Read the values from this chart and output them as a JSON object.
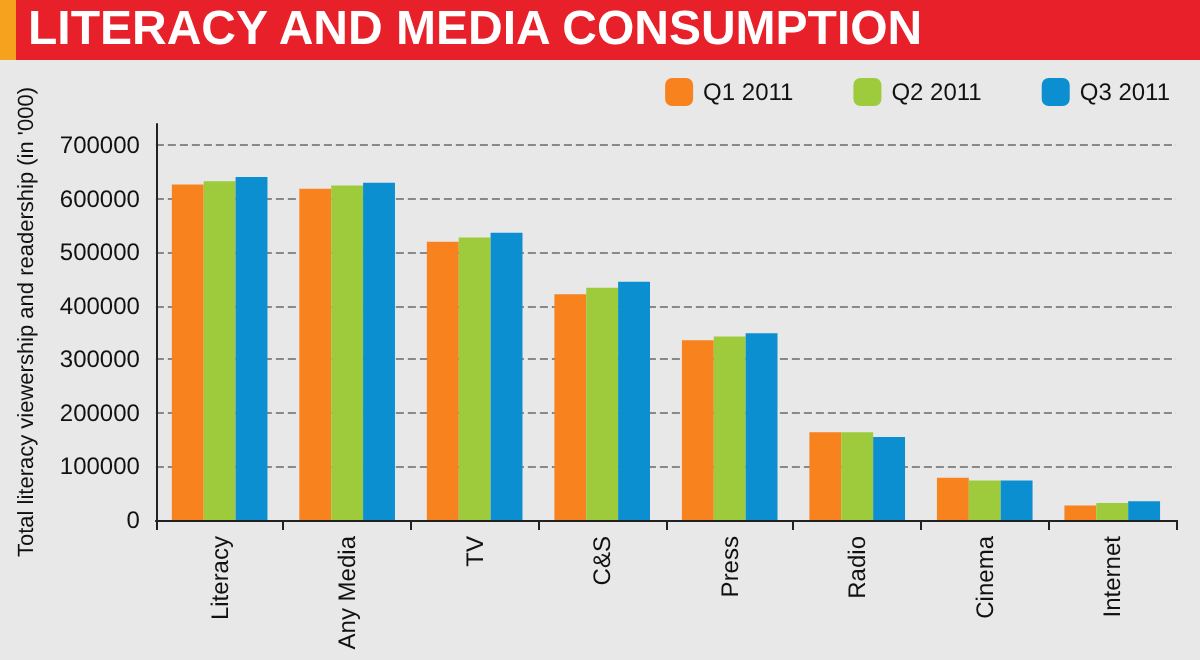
{
  "chart_data": {
    "type": "bar",
    "title": "LITERACY AND MEDIA CONSUMPTION",
    "ylabel": "Total literacy viewership and readership (in '000)",
    "categories": [
      "Literacy",
      "Any Media",
      "TV",
      "C&S",
      "Press",
      "Radio",
      "Cinema",
      "Internet"
    ],
    "series": [
      {
        "name": "Q1 2011",
        "color": "#f7821e",
        "values": [
          627000,
          619000,
          520000,
          422000,
          336000,
          164000,
          79000,
          27000
        ]
      },
      {
        "name": "Q2 2011",
        "color": "#9dcb3b",
        "values": [
          633000,
          625000,
          528000,
          434000,
          343000,
          164000,
          74000,
          32000
        ]
      },
      {
        "name": "Q3 2011",
        "color": "#0b8fd0",
        "values": [
          641000,
          630000,
          537000,
          445000,
          349000,
          155000,
          74000,
          35000
        ]
      }
    ],
    "ylim": [
      0,
      740000
    ],
    "yticks": [
      0,
      100000,
      200000,
      300000,
      400000,
      500000,
      600000,
      700000
    ],
    "grid": "y",
    "legend": "top right"
  }
}
